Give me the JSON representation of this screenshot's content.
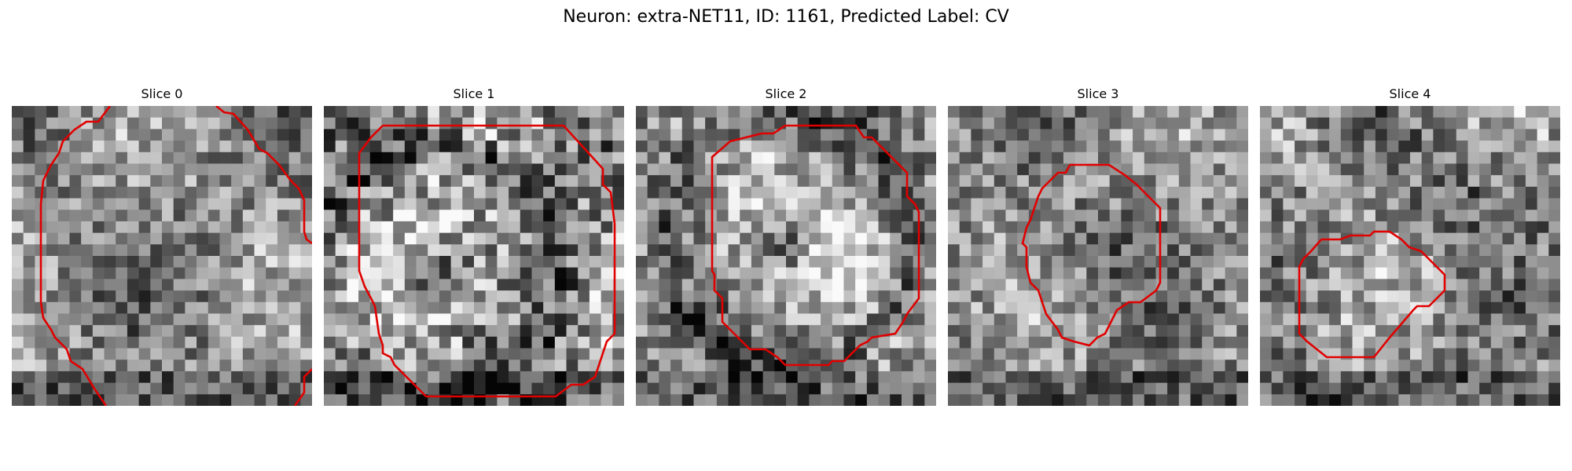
{
  "figure": {
    "title": "Neuron: extra-NET11, ID: 1161, Predicted Label: CV",
    "contour_color": "#e00000"
  },
  "slices": [
    {
      "label": "Slice 0",
      "seed": 11,
      "center": [
        0.35,
        0.6
      ],
      "dark_ring": false,
      "contrast": 0.55
    },
    {
      "label": "Slice 1",
      "seed": 23,
      "center": [
        0.38,
        0.55
      ],
      "dark_ring": true,
      "contrast": 0.75
    },
    {
      "label": "Slice 2",
      "seed": 37,
      "center": [
        0.5,
        0.45
      ],
      "dark_ring": true,
      "contrast": 0.6
    },
    {
      "label": "Slice 3",
      "seed": 53,
      "center": [
        0.5,
        0.5
      ],
      "dark_ring": false,
      "contrast": 0.55
    },
    {
      "label": "Slice 4",
      "seed": 71,
      "center": [
        0.7,
        0.3
      ],
      "dark_ring": false,
      "contrast": 0.6
    }
  ]
}
